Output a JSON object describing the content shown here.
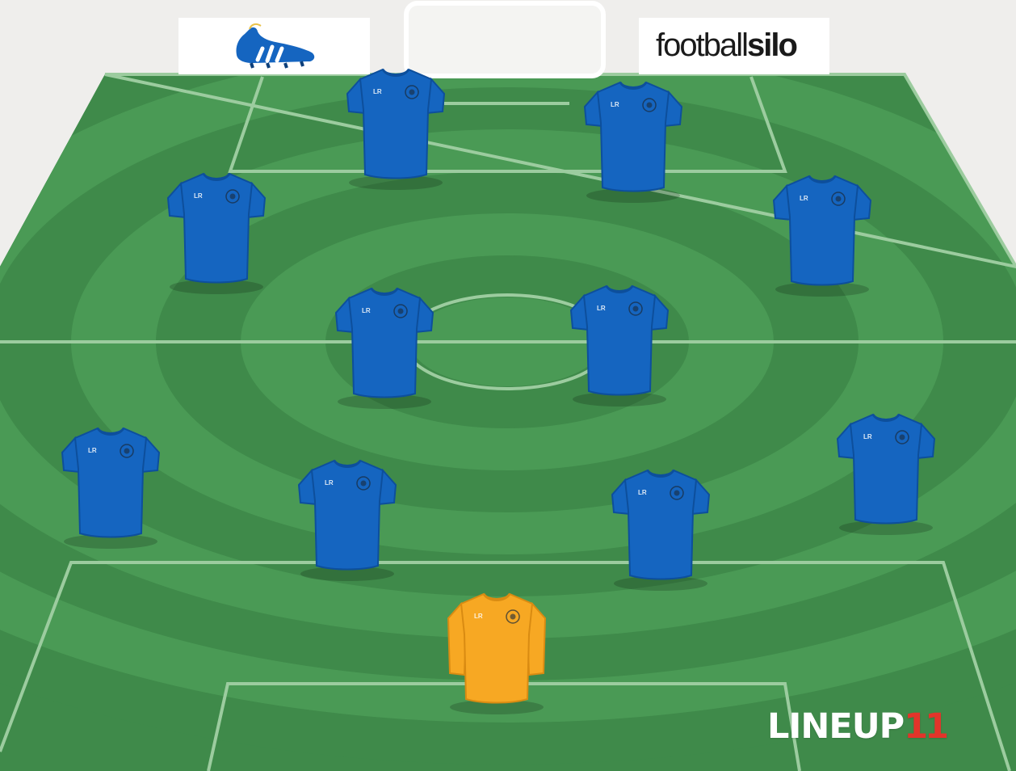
{
  "sponsors": {
    "left": {
      "icon": "football-boot-icon",
      "label": ""
    },
    "right": {
      "wordmark_regular": "football",
      "wordmark_bold": "silo"
    }
  },
  "branding": {
    "logo_text": "LINEUP",
    "logo_number": "11",
    "logo_number_color": "#e2342a"
  },
  "colors": {
    "pitch_dark": "#3f8a4a",
    "pitch_light": "#4a9a55",
    "lines": "#9ccc9f",
    "outfield_shirt": "#1565c0",
    "outfield_shirt_dark": "#0d4f9c",
    "goalkeeper_shirt": "#f7a823",
    "goalkeeper_shirt_dark": "#d98b12"
  },
  "formation": {
    "players": [
      {
        "role": "outfield",
        "label": "LR"
      },
      {
        "role": "outfield",
        "label": "LR"
      },
      {
        "role": "outfield",
        "label": "LR"
      },
      {
        "role": "outfield",
        "label": "LR"
      },
      {
        "role": "outfield",
        "label": "LR"
      },
      {
        "role": "outfield",
        "label": "LR"
      },
      {
        "role": "outfield",
        "label": "LR"
      },
      {
        "role": "outfield",
        "label": "LR"
      },
      {
        "role": "outfield",
        "label": "LR"
      },
      {
        "role": "outfield",
        "label": "LR"
      },
      {
        "role": "goalkeeper",
        "label": "LR"
      }
    ]
  }
}
